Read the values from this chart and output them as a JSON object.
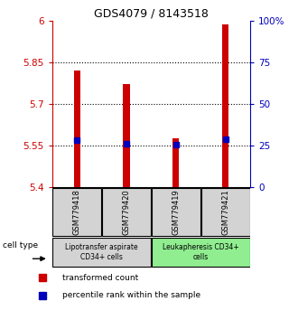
{
  "title": "GDS4079 / 8143518",
  "samples": [
    "GSM779418",
    "GSM779420",
    "GSM779419",
    "GSM779421"
  ],
  "bar_values": [
    5.822,
    5.773,
    5.575,
    5.988
  ],
  "percentile_values": [
    5.57,
    5.558,
    5.552,
    5.572
  ],
  "ylim_left": [
    5.4,
    6.0
  ],
  "ylim_right": [
    0,
    100
  ],
  "yticks_left": [
    5.4,
    5.55,
    5.7,
    5.85,
    6.0
  ],
  "ytick_labels_left": [
    "5.4",
    "5.55",
    "5.7",
    "5.85",
    "6"
  ],
  "yticks_right": [
    0,
    25,
    50,
    75,
    100
  ],
  "ytick_labels_right": [
    "0",
    "25",
    "50",
    "75",
    "100%"
  ],
  "gridlines": [
    5.55,
    5.7,
    5.85
  ],
  "bar_color": "#cc0000",
  "percentile_color": "#0000bb",
  "bar_bottom": 5.4,
  "group1_label": "Lipotransfer aspirate\nCD34+ cells",
  "group2_label": "Leukapheresis CD34+\ncells",
  "group1_color": "#d3d3d3",
  "group2_color": "#90ee90",
  "legend_red_label": "transformed count",
  "legend_blue_label": "percentile rank within the sample",
  "cell_type_label": "cell type"
}
